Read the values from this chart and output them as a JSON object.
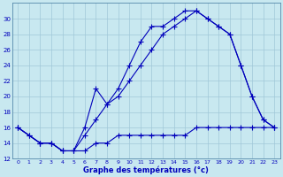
{
  "xlabel": "Graphe des températures (°c)",
  "bg_color": "#c8e8f0",
  "line_color": "#0000bb",
  "grid_color": "#a0c8d8",
  "spine_color": "#5588aa",
  "xmin": 0,
  "xmax": 23,
  "ymin": 12,
  "ymax": 30,
  "yticks": [
    12,
    14,
    16,
    18,
    20,
    22,
    24,
    26,
    28,
    30
  ],
  "xticks": [
    0,
    1,
    2,
    3,
    4,
    5,
    6,
    7,
    8,
    9,
    10,
    11,
    12,
    13,
    14,
    15,
    16,
    17,
    18,
    19,
    20,
    21,
    22,
    23
  ],
  "series1_x": [
    0,
    1,
    2,
    3,
    4,
    5,
    6,
    7,
    8,
    9,
    10,
    11,
    12,
    13,
    14,
    15,
    16,
    17,
    18,
    19,
    20,
    21,
    22,
    23
  ],
  "series1_y": [
    16,
    15,
    14,
    14,
    13,
    13,
    15,
    17,
    19,
    21,
    24,
    27,
    29,
    29,
    30,
    31,
    31,
    30,
    29,
    28,
    24,
    20,
    17,
    16
  ],
  "series2_x": [
    0,
    2,
    3,
    4,
    5,
    6,
    7,
    8,
    9,
    10,
    11,
    12,
    13,
    14,
    15,
    16,
    17,
    18,
    19,
    20,
    21,
    22,
    23
  ],
  "series2_y": [
    16,
    14,
    14,
    13,
    13,
    16,
    21,
    19,
    20,
    22,
    24,
    26,
    28,
    29,
    30,
    31,
    30,
    29,
    28,
    24,
    20,
    17,
    16
  ],
  "series3_x": [
    0,
    1,
    2,
    3,
    4,
    5,
    6,
    7,
    8,
    9,
    10,
    11,
    12,
    13,
    14,
    15,
    16,
    17,
    18,
    19,
    20,
    21,
    22,
    23
  ],
  "series3_y": [
    16,
    15,
    14,
    14,
    13,
    13,
    13,
    14,
    14,
    15,
    15,
    15,
    15,
    15,
    15,
    15,
    16,
    16,
    16,
    16,
    16,
    16,
    16,
    16
  ]
}
